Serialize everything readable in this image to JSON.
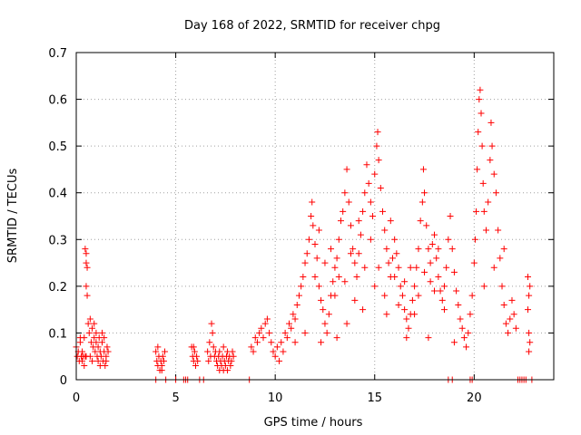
{
  "chart_data": {
    "type": "scatter",
    "title": "Day 168 of 2022, SRMTID for receiver chpg",
    "xlabel": "GPS time / hours",
    "ylabel": "SRMTID / TECUs",
    "xlim": [
      0,
      24
    ],
    "ylim": [
      0,
      0.7
    ],
    "x_ticks": [
      0,
      5,
      10,
      15,
      20
    ],
    "x_tick_labels": [
      "0",
      "5",
      "10",
      "15",
      "20"
    ],
    "y_ticks": [
      0,
      0.1,
      0.2,
      0.3,
      0.4,
      0.5,
      0.6,
      0.7
    ],
    "y_tick_labels": [
      "0",
      "0.1",
      "0.2",
      "0.3",
      "0.4",
      "0.5",
      "0.6",
      "0.7"
    ],
    "grid": true,
    "marker": "+",
    "marker_color": "#ff0000",
    "series": [
      {
        "name": "SRMTID",
        "points": [
          [
            0.0,
            0.07
          ],
          [
            0.05,
            0.05
          ],
          [
            0.1,
            0.06
          ],
          [
            0.15,
            0.04
          ],
          [
            0.2,
            0.08
          ],
          [
            0.25,
            0.05
          ],
          [
            0.3,
            0.06
          ],
          [
            0.35,
            0.05
          ],
          [
            0.4,
            0.09
          ],
          [
            0.45,
            0.05
          ],
          [
            0.2,
            0.09
          ],
          [
            0.3,
            0.04
          ],
          [
            0.4,
            0.03
          ],
          [
            0.5,
            0.05
          ],
          [
            0.5,
            0.27
          ],
          [
            0.45,
            0.28
          ],
          [
            0.5,
            0.25
          ],
          [
            0.55,
            0.24
          ],
          [
            0.5,
            0.2
          ],
          [
            0.55,
            0.18
          ],
          [
            0.6,
            0.12
          ],
          [
            0.65,
            0.1
          ],
          [
            0.7,
            0.13
          ],
          [
            0.75,
            0.08
          ],
          [
            0.8,
            0.11
          ],
          [
            0.85,
            0.07
          ],
          [
            0.9,
            0.09
          ],
          [
            0.95,
            0.06
          ],
          [
            1.0,
            0.08
          ],
          [
            1.05,
            0.05
          ],
          [
            1.1,
            0.07
          ],
          [
            1.15,
            0.09
          ],
          [
            1.2,
            0.06
          ],
          [
            1.25,
            0.05
          ],
          [
            1.3,
            0.08
          ],
          [
            1.35,
            0.04
          ],
          [
            1.4,
            0.06
          ],
          [
            1.45,
            0.03
          ],
          [
            1.5,
            0.05
          ],
          [
            1.55,
            0.07
          ],
          [
            0.7,
            0.05
          ],
          [
            0.8,
            0.04
          ],
          [
            0.9,
            0.12
          ],
          [
            1.0,
            0.1
          ],
          [
            1.1,
            0.04
          ],
          [
            1.2,
            0.03
          ],
          [
            1.3,
            0.1
          ],
          [
            1.4,
            0.09
          ],
          [
            1.5,
            0.04
          ],
          [
            1.6,
            0.06
          ],
          [
            4.0,
            0.06
          ],
          [
            4.05,
            0.04
          ],
          [
            4.1,
            0.03
          ],
          [
            4.15,
            0.05
          ],
          [
            4.2,
            0.02
          ],
          [
            4.25,
            0.04
          ],
          [
            4.3,
            0.03
          ],
          [
            4.35,
            0.05
          ],
          [
            4.4,
            0.04
          ],
          [
            4.45,
            0.06
          ],
          [
            4.1,
            0.07
          ],
          [
            4.3,
            0.02
          ],
          [
            5.8,
            0.07
          ],
          [
            5.85,
            0.05
          ],
          [
            5.9,
            0.04
          ],
          [
            5.95,
            0.06
          ],
          [
            6.0,
            0.03
          ],
          [
            6.05,
            0.05
          ],
          [
            6.1,
            0.04
          ],
          [
            5.9,
            0.07
          ],
          [
            6.6,
            0.06
          ],
          [
            6.65,
            0.04
          ],
          [
            6.7,
            0.08
          ],
          [
            6.75,
            0.05
          ],
          [
            6.8,
            0.12
          ],
          [
            6.85,
            0.1
          ],
          [
            6.9,
            0.07
          ],
          [
            6.95,
            0.05
          ],
          [
            7.0,
            0.06
          ],
          [
            7.05,
            0.04
          ],
          [
            7.1,
            0.03
          ],
          [
            7.15,
            0.05
          ],
          [
            7.2,
            0.02
          ],
          [
            7.25,
            0.04
          ],
          [
            7.3,
            0.03
          ],
          [
            7.35,
            0.05
          ],
          [
            7.4,
            0.02
          ],
          [
            7.45,
            0.04
          ],
          [
            7.5,
            0.03
          ],
          [
            7.55,
            0.05
          ],
          [
            7.6,
            0.06
          ],
          [
            7.65,
            0.04
          ],
          [
            7.7,
            0.05
          ],
          [
            7.75,
            0.03
          ],
          [
            7.8,
            0.04
          ],
          [
            7.85,
            0.06
          ],
          [
            7.9,
            0.05
          ],
          [
            7.2,
            0.06
          ],
          [
            7.4,
            0.07
          ],
          [
            7.6,
            0.02
          ],
          [
            8.8,
            0.07
          ],
          [
            8.9,
            0.06
          ],
          [
            9.0,
            0.09
          ],
          [
            9.1,
            0.08
          ],
          [
            9.2,
            0.1
          ],
          [
            9.3,
            0.11
          ],
          [
            9.4,
            0.09
          ],
          [
            9.5,
            0.12
          ],
          [
            9.6,
            0.13
          ],
          [
            9.7,
            0.1
          ],
          [
            9.8,
            0.08
          ],
          [
            9.9,
            0.06
          ],
          [
            10.0,
            0.05
          ],
          [
            10.1,
            0.07
          ],
          [
            10.2,
            0.04
          ],
          [
            10.3,
            0.08
          ],
          [
            10.4,
            0.06
          ],
          [
            10.5,
            0.1
          ],
          [
            10.6,
            0.09
          ],
          [
            10.7,
            0.12
          ],
          [
            10.8,
            0.11
          ],
          [
            10.9,
            0.14
          ],
          [
            11.0,
            0.13
          ],
          [
            11.1,
            0.16
          ],
          [
            11.2,
            0.18
          ],
          [
            11.3,
            0.2
          ],
          [
            11.4,
            0.22
          ],
          [
            11.5,
            0.25
          ],
          [
            11.6,
            0.27
          ],
          [
            11.7,
            0.3
          ],
          [
            11.8,
            0.35
          ],
          [
            11.85,
            0.38
          ],
          [
            11.9,
            0.33
          ],
          [
            12.0,
            0.29
          ],
          [
            12.1,
            0.26
          ],
          [
            12.2,
            0.2
          ],
          [
            12.3,
            0.17
          ],
          [
            12.4,
            0.15
          ],
          [
            12.5,
            0.12
          ],
          [
            12.6,
            0.1
          ],
          [
            12.7,
            0.14
          ],
          [
            12.8,
            0.18
          ],
          [
            12.9,
            0.21
          ],
          [
            13.0,
            0.24
          ],
          [
            13.1,
            0.26
          ],
          [
            13.2,
            0.3
          ],
          [
            13.3,
            0.34
          ],
          [
            13.4,
            0.36
          ],
          [
            13.5,
            0.4
          ],
          [
            13.6,
            0.45
          ],
          [
            13.7,
            0.38
          ],
          [
            13.8,
            0.33
          ],
          [
            13.9,
            0.28
          ],
          [
            14.0,
            0.25
          ],
          [
            14.1,
            0.22
          ],
          [
            14.2,
            0.27
          ],
          [
            14.3,
            0.31
          ],
          [
            14.4,
            0.36
          ],
          [
            14.5,
            0.4
          ],
          [
            14.6,
            0.46
          ],
          [
            14.7,
            0.42
          ],
          [
            14.8,
            0.38
          ],
          [
            14.9,
            0.35
          ],
          [
            15.0,
            0.44
          ],
          [
            15.1,
            0.5
          ],
          [
            15.15,
            0.53
          ],
          [
            15.2,
            0.47
          ],
          [
            15.3,
            0.41
          ],
          [
            15.4,
            0.36
          ],
          [
            15.5,
            0.32
          ],
          [
            15.6,
            0.28
          ],
          [
            15.7,
            0.25
          ],
          [
            15.8,
            0.22
          ],
          [
            15.9,
            0.26
          ],
          [
            16.0,
            0.3
          ],
          [
            16.1,
            0.27
          ],
          [
            16.2,
            0.24
          ],
          [
            16.3,
            0.2
          ],
          [
            16.4,
            0.18
          ],
          [
            16.5,
            0.15
          ],
          [
            16.6,
            0.13
          ],
          [
            16.7,
            0.11
          ],
          [
            16.8,
            0.14
          ],
          [
            16.9,
            0.17
          ],
          [
            17.0,
            0.2
          ],
          [
            17.1,
            0.24
          ],
          [
            17.2,
            0.28
          ],
          [
            17.3,
            0.34
          ],
          [
            17.4,
            0.38
          ],
          [
            17.45,
            0.45
          ],
          [
            17.5,
            0.4
          ],
          [
            17.6,
            0.33
          ],
          [
            17.7,
            0.28
          ],
          [
            17.8,
            0.25
          ],
          [
            17.9,
            0.29
          ],
          [
            18.0,
            0.31
          ],
          [
            18.1,
            0.26
          ],
          [
            18.2,
            0.22
          ],
          [
            18.3,
            0.19
          ],
          [
            18.4,
            0.17
          ],
          [
            18.5,
            0.2
          ],
          [
            18.6,
            0.24
          ],
          [
            18.7,
            0.3
          ],
          [
            18.8,
            0.35
          ],
          [
            18.9,
            0.28
          ],
          [
            19.0,
            0.23
          ],
          [
            19.1,
            0.19
          ],
          [
            19.2,
            0.16
          ],
          [
            19.3,
            0.13
          ],
          [
            19.4,
            0.11
          ],
          [
            19.5,
            0.09
          ],
          [
            19.6,
            0.07
          ],
          [
            19.7,
            0.1
          ],
          [
            19.8,
            0.14
          ],
          [
            19.9,
            0.18
          ],
          [
            20.0,
            0.25
          ],
          [
            20.05,
            0.3
          ],
          [
            20.1,
            0.36
          ],
          [
            20.15,
            0.45
          ],
          [
            20.2,
            0.53
          ],
          [
            20.25,
            0.6
          ],
          [
            20.3,
            0.62
          ],
          [
            20.35,
            0.57
          ],
          [
            20.4,
            0.5
          ],
          [
            20.45,
            0.42
          ],
          [
            20.5,
            0.36
          ],
          [
            20.6,
            0.32
          ],
          [
            20.7,
            0.38
          ],
          [
            20.8,
            0.47
          ],
          [
            20.85,
            0.55
          ],
          [
            20.9,
            0.5
          ],
          [
            21.0,
            0.44
          ],
          [
            21.1,
            0.4
          ],
          [
            21.2,
            0.32
          ],
          [
            21.3,
            0.26
          ],
          [
            21.4,
            0.2
          ],
          [
            21.5,
            0.16
          ],
          [
            21.6,
            0.12
          ],
          [
            21.7,
            0.1
          ],
          [
            21.8,
            0.13
          ],
          [
            21.9,
            0.17
          ],
          [
            22.0,
            0.14
          ],
          [
            22.1,
            0.11
          ],
          [
            22.7,
            0.22
          ],
          [
            22.75,
            0.18
          ],
          [
            22.8,
            0.2
          ],
          [
            22.7,
            0.15
          ],
          [
            22.75,
            0.1
          ],
          [
            22.8,
            0.08
          ],
          [
            22.75,
            0.06
          ],
          [
            12.0,
            0.22
          ],
          [
            12.5,
            0.25
          ],
          [
            13.0,
            0.18
          ],
          [
            13.5,
            0.21
          ],
          [
            14.0,
            0.17
          ],
          [
            14.5,
            0.24
          ],
          [
            15.0,
            0.2
          ],
          [
            15.5,
            0.18
          ],
          [
            16.0,
            0.22
          ],
          [
            16.5,
            0.21
          ],
          [
            17.0,
            0.14
          ],
          [
            17.5,
            0.23
          ],
          [
            18.0,
            0.19
          ],
          [
            18.5,
            0.15
          ],
          [
            12.2,
            0.32
          ],
          [
            12.8,
            0.28
          ],
          [
            13.2,
            0.22
          ],
          [
            13.8,
            0.27
          ],
          [
            14.2,
            0.34
          ],
          [
            14.8,
            0.3
          ],
          [
            15.2,
            0.24
          ],
          [
            15.8,
            0.34
          ],
          [
            16.2,
            0.16
          ],
          [
            16.8,
            0.24
          ],
          [
            17.2,
            0.18
          ],
          [
            17.8,
            0.21
          ],
          [
            18.2,
            0.28
          ],
          [
            13.6,
            0.12
          ],
          [
            14.4,
            0.15
          ],
          [
            15.6,
            0.14
          ],
          [
            11.0,
            0.08
          ],
          [
            11.5,
            0.1
          ],
          [
            12.3,
            0.08
          ],
          [
            13.1,
            0.09
          ],
          [
            16.6,
            0.09
          ],
          [
            17.7,
            0.09
          ],
          [
            19.0,
            0.08
          ],
          [
            20.5,
            0.2
          ],
          [
            21.0,
            0.24
          ],
          [
            21.5,
            0.28
          ],
          [
            4.0,
            0.0
          ],
          [
            4.5,
            0.0
          ],
          [
            5.0,
            0.0
          ],
          [
            5.4,
            0.0
          ],
          [
            5.5,
            0.0
          ],
          [
            5.6,
            0.0
          ],
          [
            6.2,
            0.0
          ],
          [
            6.4,
            0.0
          ],
          [
            8.7,
            0.0
          ],
          [
            18.7,
            0.0
          ],
          [
            18.9,
            0.0
          ],
          [
            19.8,
            0.0
          ],
          [
            19.9,
            0.0
          ],
          [
            22.2,
            0.0
          ],
          [
            22.3,
            0.0
          ],
          [
            22.4,
            0.0
          ],
          [
            22.5,
            0.0
          ],
          [
            22.6,
            0.0
          ],
          [
            22.9,
            0.0
          ]
        ]
      }
    ]
  }
}
